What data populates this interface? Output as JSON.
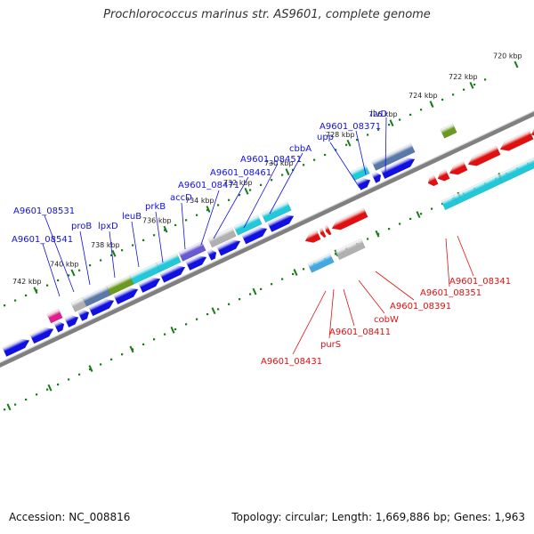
{
  "title": "Prochlorococcus marinus str. AS9601, complete genome",
  "footer": {
    "accession": "Accession: NC_008816",
    "topology": "Topology: circular; Length: 1,669,886 bp; Genes: 1,963"
  },
  "colors": {
    "forward": "#1010e0",
    "reverse": "#e01010",
    "cyan": "#22c8d8",
    "light_blue": "#44a8e0",
    "gray": "#b0b0b0",
    "olive": "#6a9a20",
    "purple": "#6a5ad0",
    "magenta": "#e0208a",
    "steel": "#5a78a8",
    "backbone": "#808080",
    "ticks": "#1a7a1a"
  },
  "scale": {
    "unit": "kbp",
    "ticks": [
      {
        "label": "720 kbp"
      },
      {
        "label": "722 kbp"
      },
      {
        "label": "724 kbp"
      },
      {
        "label": "726 kbp"
      },
      {
        "label": "728 kbp"
      },
      {
        "label": "730 kbp"
      },
      {
        "label": "732 kbp"
      },
      {
        "label": "734 kbp"
      },
      {
        "label": "736 kbp"
      },
      {
        "label": "738 kbp"
      },
      {
        "label": "740 kbp"
      },
      {
        "label": "742 kbp"
      }
    ]
  },
  "forward_labels": [
    {
      "text": "ilvD"
    },
    {
      "text": "A9601_08371"
    },
    {
      "text": "upp"
    },
    {
      "text": "cbbA"
    },
    {
      "text": "A9601_08451"
    },
    {
      "text": "A9601_08461"
    },
    {
      "text": "A9601_08471"
    },
    {
      "text": "accD"
    },
    {
      "text": "prkB"
    },
    {
      "text": "leuB"
    },
    {
      "text": "lpxD"
    },
    {
      "text": "proB"
    },
    {
      "text": "A9601_08531"
    },
    {
      "text": "A9601_08541"
    }
  ],
  "reverse_labels": [
    {
      "text": "A9601_08341"
    },
    {
      "text": "A9601_08351"
    },
    {
      "text": "A9601_08391"
    },
    {
      "text": "cobW"
    },
    {
      "text": "A9601_08411"
    },
    {
      "text": "purS"
    },
    {
      "text": "A9601_08431"
    }
  ]
}
